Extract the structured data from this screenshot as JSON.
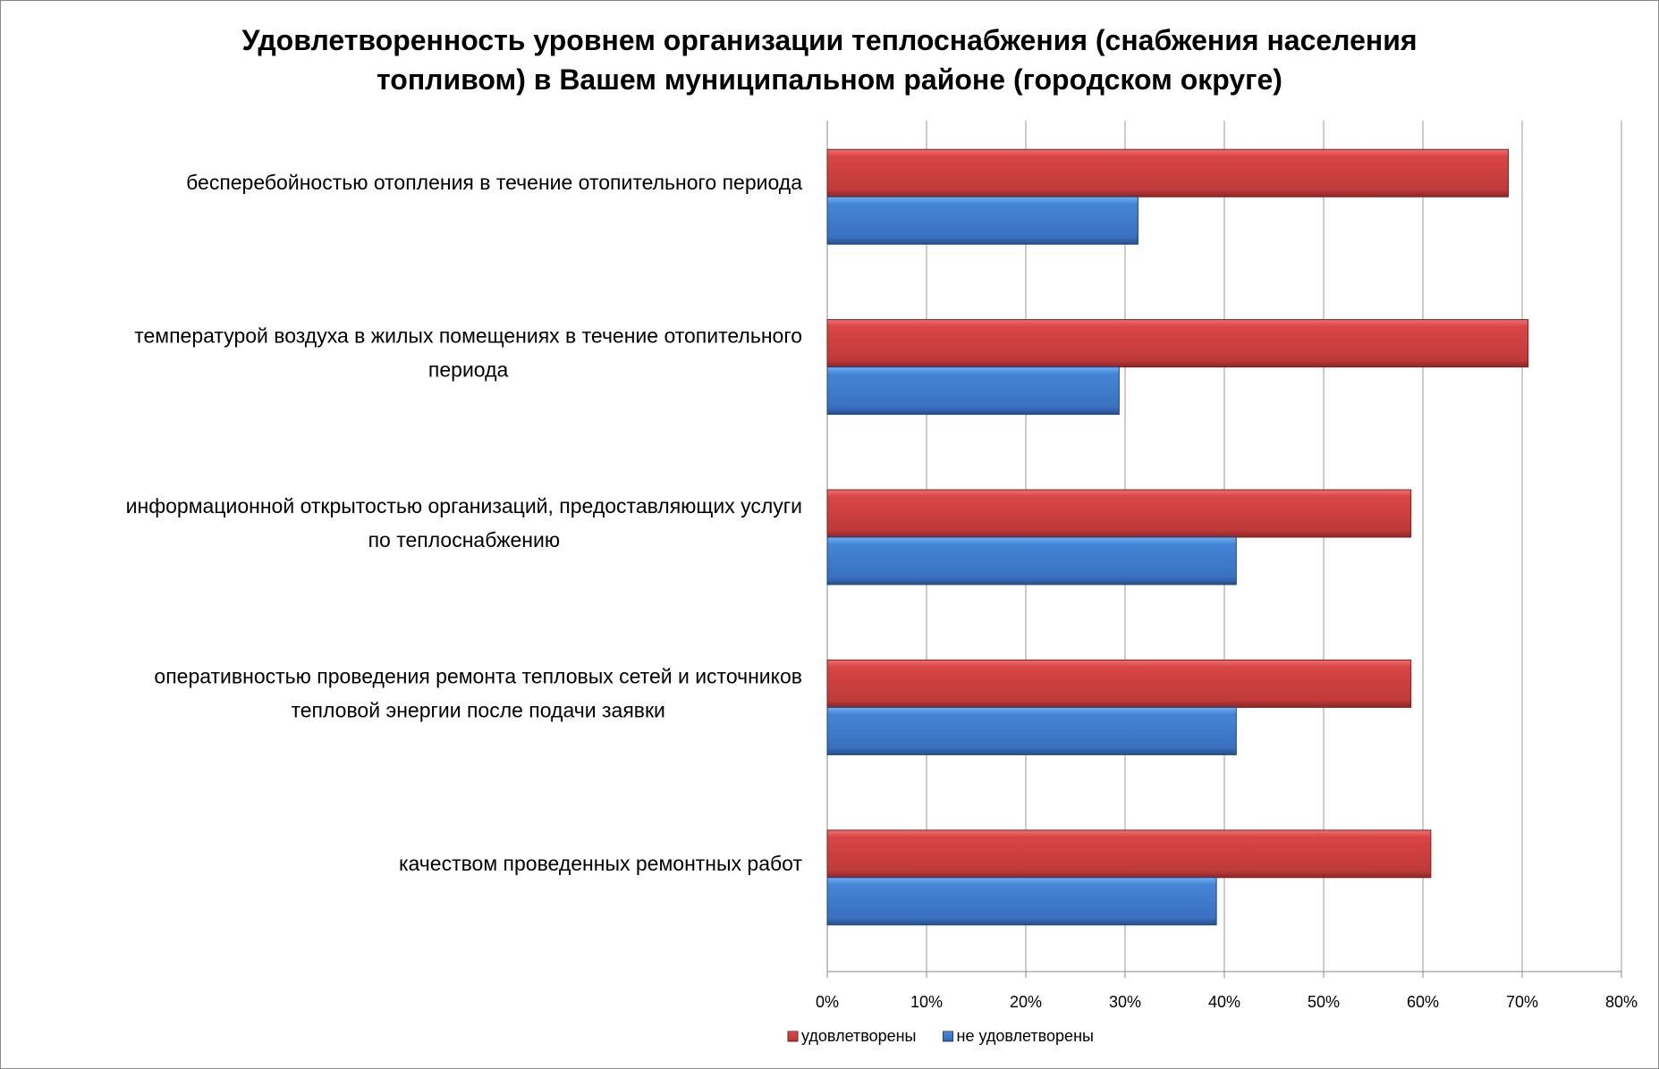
{
  "chart_data": {
    "type": "bar",
    "orientation": "horizontal",
    "title_lines": [
      "Удовлетворенность уровнем организации теплоснабжения (снабжения населения",
      "топливом) в Вашем муниципальном районе (городском округе)"
    ],
    "categories": [
      [
        "бесперебойностью  отопления в течение отопительного периода"
      ],
      [
        "температурой  воздуха в жилых помещениях в течение отопительного",
        "периода"
      ],
      [
        "информационной открытостью  организаций, предоставляющих услуги",
        "по теплоснабжению"
      ],
      [
        "оперативностью проведения ремонта тепловых сетей и источников",
        "тепловой энергии после подачи заявки"
      ],
      [
        "качеством  проведенных ремонтных работ"
      ]
    ],
    "series": [
      {
        "name": "удовлетворены",
        "color": "#c0393b",
        "values": [
          68.6,
          70.6,
          58.8,
          58.8,
          60.8
        ]
      },
      {
        "name": "не удовлетворены",
        "color": "#3a72c0",
        "values": [
          31.3,
          29.4,
          41.2,
          41.2,
          39.2
        ]
      }
    ],
    "xlim": [
      0,
      80
    ],
    "xticks": [
      "0%",
      "10%",
      "20%",
      "30%",
      "40%",
      "50%",
      "60%",
      "70%",
      "80%"
    ],
    "grid": true,
    "legend": "bottom"
  }
}
